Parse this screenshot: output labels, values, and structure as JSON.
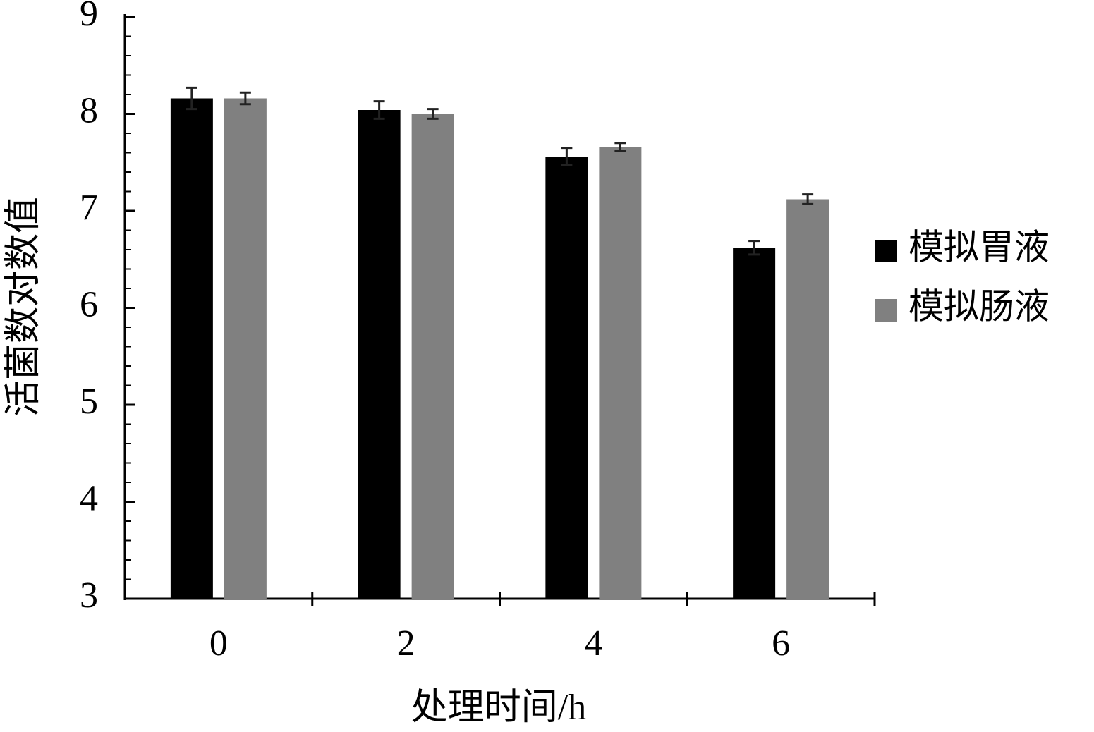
{
  "chart_data": {
    "type": "bar",
    "x_label": "处理时间/h",
    "y_label": "活菌数对数值",
    "categories": [
      "0",
      "2",
      "4",
      "6"
    ],
    "series": [
      {
        "name": "模拟胃液",
        "color": "#000000",
        "values": [
          8.16,
          8.04,
          7.56,
          6.62
        ],
        "errors": [
          0.11,
          0.09,
          0.09,
          0.07
        ]
      },
      {
        "name": "模拟肠液",
        "color": "#808080",
        "values": [
          8.16,
          8.0,
          7.66,
          7.12
        ],
        "errors": [
          0.06,
          0.05,
          0.04,
          0.05
        ]
      }
    ],
    "ylim": [
      3,
      9
    ],
    "yticks": [
      3,
      4,
      5,
      6,
      7,
      8,
      9
    ],
    "legend": "right"
  }
}
